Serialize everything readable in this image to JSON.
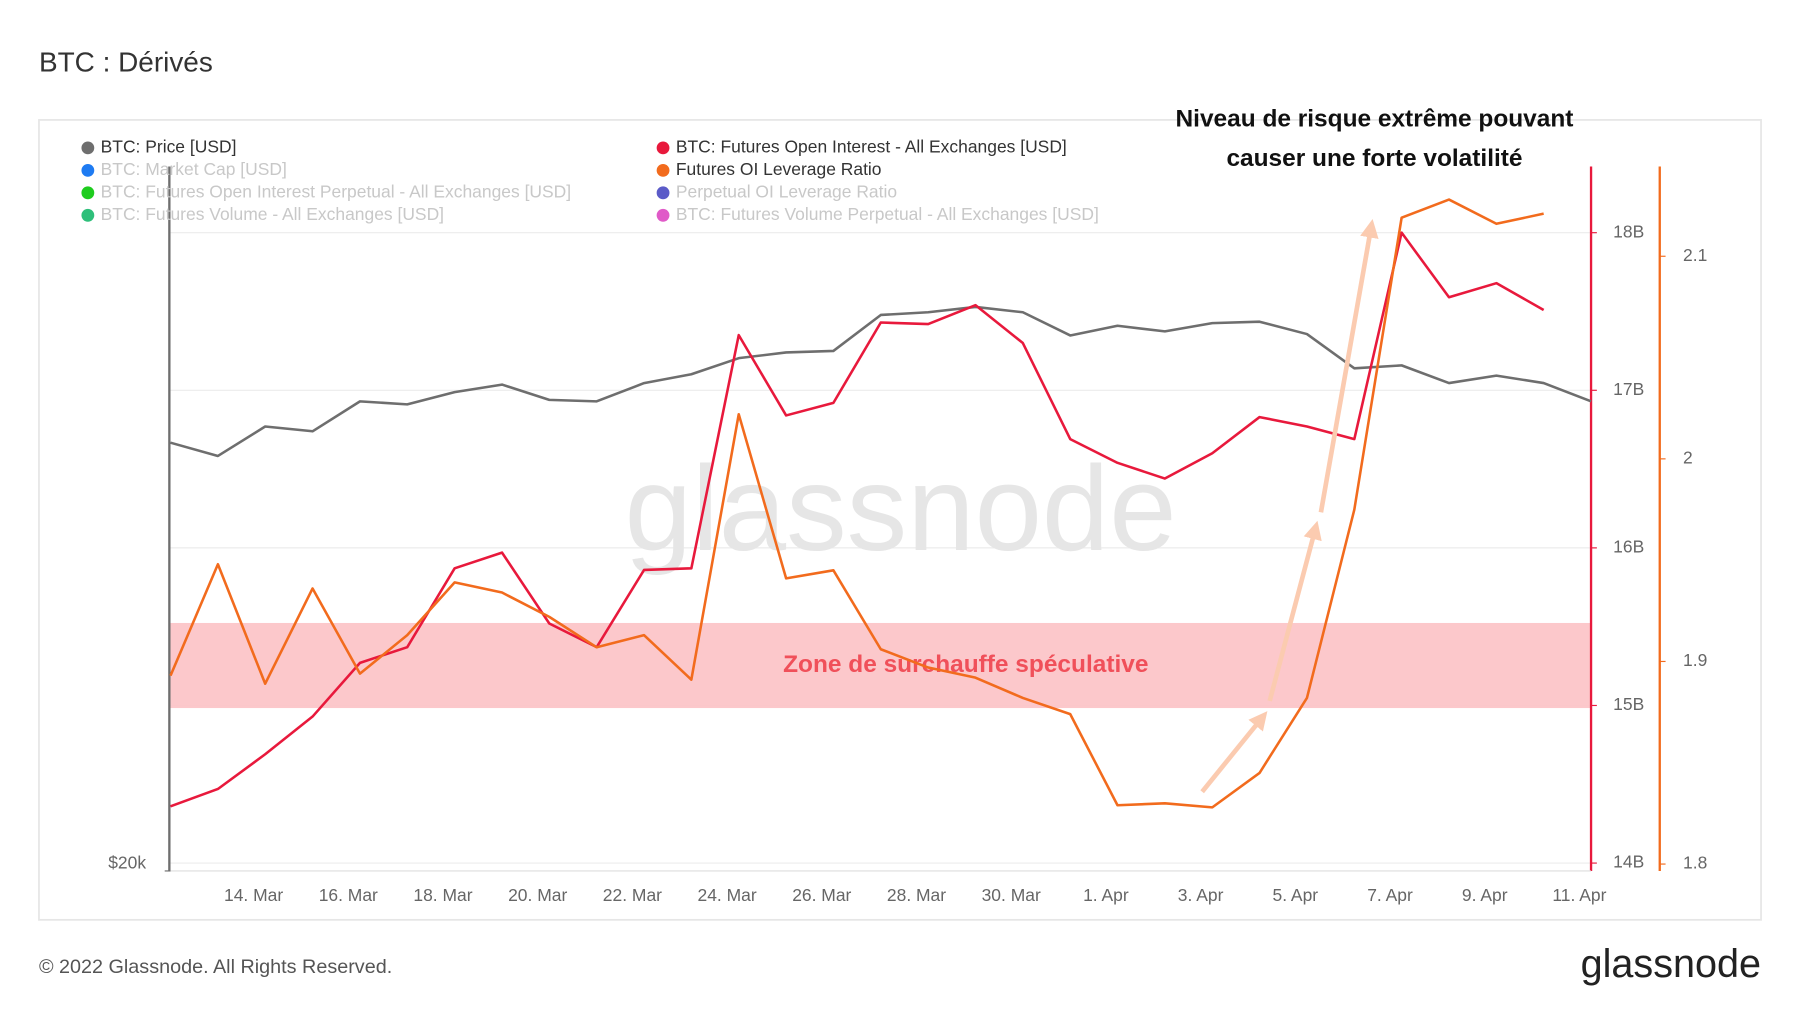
{
  "chart_data": {
    "type": "line",
    "title": "BTC : Dérivés",
    "annotation_lines": [
      "Niveau de risque extrême pouvant",
      "causer une forte volatilité"
    ],
    "zone": {
      "label": "Zone de surchauffe spéculative",
      "axis": "y3",
      "range": [
        1.877,
        1.919
      ],
      "color": "#fcc5c8",
      "label_color": "#f0505a"
    },
    "watermark": "glassnode",
    "footer": "© 2022 Glassnode. All Rights Reserved.",
    "logo": "glassnode",
    "categories": [
      null,
      null,
      "14. Mar",
      null,
      "16. Mar",
      null,
      "18. Mar",
      null,
      "20. Mar",
      null,
      "22. Mar",
      null,
      "24. Mar",
      null,
      "26. Mar",
      null,
      "28. Mar",
      null,
      "30. Mar",
      null,
      "1. Apr",
      null,
      "3. Apr",
      null,
      "5. Apr",
      null,
      "7. Apr",
      null,
      "9. Apr",
      null,
      "11. Apr"
    ],
    "ylim": [
      20000,
      60000
    ],
    "ylog": true,
    "yticks": [
      {
        "value": 20000,
        "label": "$20k"
      }
    ],
    "y2lim": [
      13.95,
      18.42
    ],
    "y2ticks": [
      {
        "value": 14,
        "label": "14B"
      },
      {
        "value": 15,
        "label": "15B"
      },
      {
        "value": 16,
        "label": "16B"
      },
      {
        "value": 17,
        "label": "17B"
      },
      {
        "value": 18,
        "label": "18B"
      }
    ],
    "y2color": "#e8193c",
    "y3lim": [
      1.7966,
      2.1443
    ],
    "y3ticks": [
      1.8,
      1.9,
      2,
      2.1
    ],
    "y3color": "#f26b1d",
    "grid": true,
    "series": [
      {
        "name": "BTC: Price [USD]",
        "color": "#6e6e6e",
        "axis": "y",
        "values": [
          39000,
          38200,
          40000,
          39700,
          41600,
          41400,
          42200,
          42700,
          41700,
          41600,
          42800,
          43400,
          44500,
          44900,
          45000,
          47600,
          47800,
          48200,
          47800,
          46100,
          46800,
          46400,
          47000,
          47100,
          46200,
          43800,
          44000,
          42800,
          43300,
          42800,
          41600
        ]
      },
      {
        "name": "BTC: Futures Open Interest - All Exchanges [USD]",
        "color": "#e8193c",
        "axis": "y2",
        "values": [
          14.36,
          14.47,
          14.69,
          14.93,
          15.27,
          15.37,
          15.87,
          15.97,
          15.52,
          15.37,
          15.86,
          15.87,
          17.35,
          16.84,
          16.92,
          17.43,
          17.42,
          17.54,
          17.3,
          16.69,
          16.54,
          16.44,
          16.6,
          16.83,
          16.77,
          16.69,
          18.0,
          17.59,
          17.68,
          17.51,
          null
        ]
      },
      {
        "name": "BTC: Market Cap [USD]",
        "color": "#1e7bf2",
        "hidden": true
      },
      {
        "name": "Futures OI Leverage Ratio",
        "color": "#f26b1d",
        "axis": "y3",
        "values": [
          1.893,
          1.948,
          1.889,
          1.936,
          1.894,
          1.913,
          1.939,
          1.934,
          1.922,
          1.907,
          1.913,
          1.891,
          2.022,
          1.941,
          1.945,
          1.906,
          1.897,
          1.892,
          1.882,
          1.874,
          1.829,
          1.83,
          1.828,
          1.845,
          1.882,
          1.975,
          2.119,
          2.128,
          2.116,
          2.121,
          null
        ]
      },
      {
        "name": "BTC: Futures Open Interest Perpetual - All Exchanges [USD]",
        "color": "#1ecc1e",
        "hidden": true
      },
      {
        "name": "Perpetual OI Leverage Ratio",
        "color": "#5b5bc8",
        "hidden": true
      },
      {
        "name": "BTC: Futures Volume - All Exchanges [USD]",
        "color": "#2ebf7a",
        "hidden": true
      },
      {
        "name": "BTC: Futures Volume Perpetual - All Exchanges [USD]",
        "color": "#e05ac8",
        "hidden": true
      }
    ]
  }
}
